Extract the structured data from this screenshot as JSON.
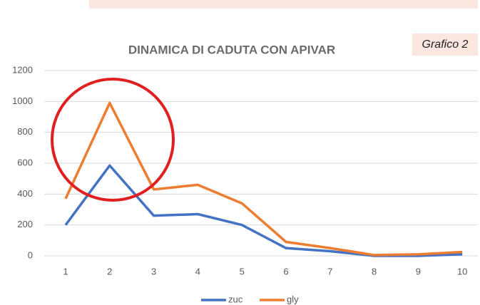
{
  "chart_data": {
    "type": "line",
    "title": "DINAMICA DI CADUTA CON APIVAR",
    "label": "Grafico 2",
    "categories": [
      "1",
      "2",
      "3",
      "4",
      "5",
      "6",
      "7",
      "8",
      "9",
      "10"
    ],
    "series": [
      {
        "name": "zuc",
        "color": "#4472c4",
        "values": [
          200,
          585,
          260,
          270,
          200,
          50,
          30,
          0,
          0,
          10
        ]
      },
      {
        "name": "gly",
        "color": "#ed7d31",
        "values": [
          370,
          990,
          430,
          460,
          340,
          90,
          50,
          5,
          10,
          25
        ]
      }
    ],
    "ylim": [
      0,
      1200
    ],
    "yticks": [
      0,
      200,
      400,
      600,
      800,
      1000,
      1200
    ],
    "grid": true
  }
}
